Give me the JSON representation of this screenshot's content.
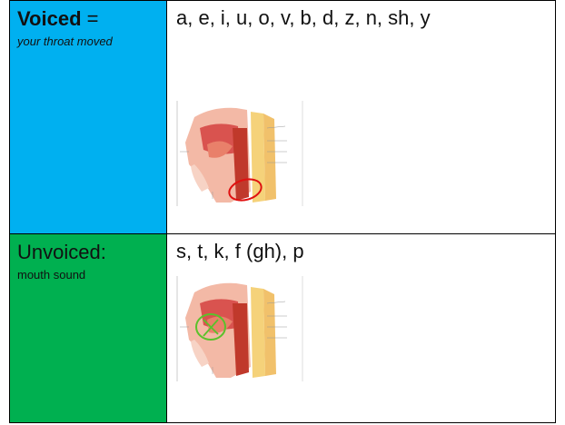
{
  "table": {
    "rows": [
      {
        "label": "Voiced",
        "label_suffix": "=",
        "note": "your throat moved",
        "content": "a, e, i, u, o, v, b, d, z, n, sh, y"
      },
      {
        "label": "Unvoiced:",
        "note": "mouth sound",
        "content": "s, t, k, f (gh), p"
      }
    ]
  }
}
